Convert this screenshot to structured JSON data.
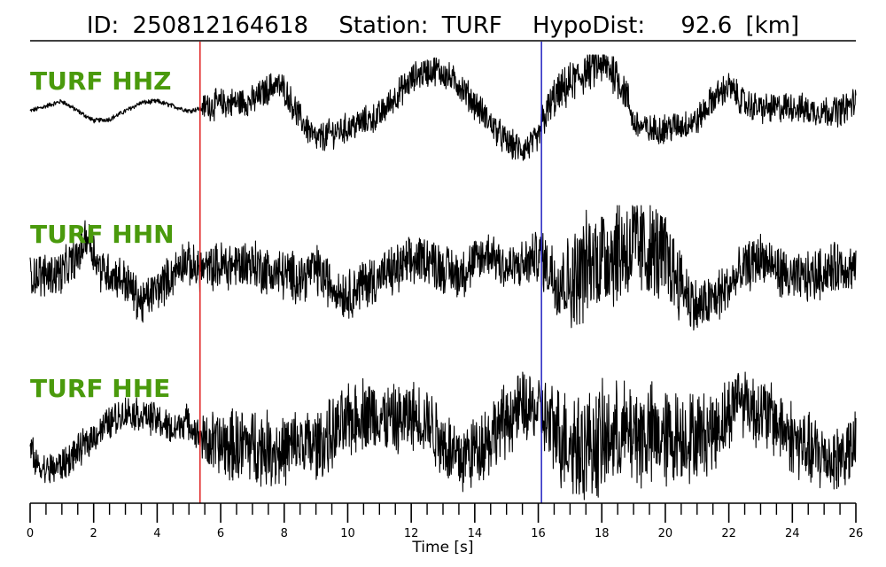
{
  "header": {
    "id_label": "ID:",
    "id_value": "250812164618",
    "station_label": "Station:",
    "station_value": "TURF",
    "dist_label": "HypoDist:",
    "dist_value": "92.6",
    "dist_unit": "[km]"
  },
  "colors": {
    "trace": "#000000",
    "channel_label": "#4a9a0c",
    "p_pick": "#e02020",
    "s_pick": "#2020c0"
  },
  "chart_data": {
    "type": "line",
    "xlabel": "Time [s]",
    "xlim": [
      0,
      26
    ],
    "x_major_ticks": [
      0,
      2,
      4,
      6,
      8,
      10,
      12,
      14,
      16,
      18,
      20,
      22,
      24,
      26
    ],
    "x_minor_step": 0.5,
    "grid": false,
    "picks": [
      {
        "phase": "P",
        "time": 5.35,
        "color": "#e02020"
      },
      {
        "phase": "S",
        "time": 16.1,
        "color": "#2020c0"
      }
    ],
    "series": [
      {
        "name": "TURF HHZ",
        "envelope": [
          [
            0,
            0.05,
            0.08
          ],
          [
            0.5,
            0.15,
            0.08
          ],
          [
            1,
            0.25,
            0.08
          ],
          [
            1.5,
            0.05,
            0.08
          ],
          [
            2,
            -0.15,
            0.08
          ],
          [
            2.5,
            -0.12,
            0.08
          ],
          [
            3,
            0.05,
            0.08
          ],
          [
            3.5,
            0.22,
            0.08
          ],
          [
            4,
            0.25,
            0.08
          ],
          [
            4.5,
            0.15,
            0.08
          ],
          [
            5,
            0.05,
            0.08
          ],
          [
            5.35,
            0.1,
            0.08
          ],
          [
            5.5,
            0.15,
            0.5
          ],
          [
            6,
            0.2,
            0.5
          ],
          [
            7,
            0.25,
            0.5
          ],
          [
            7.7,
            0.6,
            0.5
          ],
          [
            8,
            0.5,
            0.5
          ],
          [
            8.5,
            -0.1,
            0.5
          ],
          [
            9,
            -0.55,
            0.5
          ],
          [
            9.5,
            -0.4,
            0.5
          ],
          [
            10,
            -0.3,
            0.5
          ],
          [
            11,
            -0.05,
            0.5
          ],
          [
            11.5,
            0.35,
            0.5
          ],
          [
            12.2,
            0.8,
            0.5
          ],
          [
            12.8,
            0.9,
            0.5
          ],
          [
            13.5,
            0.6,
            0.5
          ],
          [
            14,
            0.2,
            0.5
          ],
          [
            14.5,
            -0.2,
            0.5
          ],
          [
            15,
            -0.6,
            0.5
          ],
          [
            15.5,
            -0.75,
            0.5
          ],
          [
            16,
            -0.55,
            0.5
          ],
          [
            16.1,
            -0.2,
            0.6
          ],
          [
            16.5,
            0.3,
            0.7
          ],
          [
            17,
            0.6,
            0.7
          ],
          [
            17.6,
            0.9,
            0.7
          ],
          [
            18,
            1.0,
            0.7
          ],
          [
            18.4,
            0.85,
            0.7
          ],
          [
            18.8,
            0.35,
            0.6
          ],
          [
            19,
            -0.2,
            0.5
          ],
          [
            19.5,
            -0.35,
            0.5
          ],
          [
            20,
            -0.3,
            0.5
          ],
          [
            20.5,
            -0.25,
            0.5
          ],
          [
            21,
            -0.15,
            0.5
          ],
          [
            21.5,
            0.3,
            0.5
          ],
          [
            22,
            0.55,
            0.5
          ],
          [
            22.5,
            0.2,
            0.5
          ],
          [
            23,
            0.1,
            0.5
          ],
          [
            23.5,
            0.1,
            0.5
          ],
          [
            24,
            0.15,
            0.5
          ],
          [
            24.5,
            0.05,
            0.5
          ],
          [
            25,
            0.05,
            0.5
          ],
          [
            25.5,
            0.05,
            0.5
          ],
          [
            26,
            0.25,
            0.5
          ]
        ]
      },
      {
        "name": "TURF HHN",
        "envelope": [
          [
            0,
            0.0,
            0.6
          ],
          [
            0.5,
            0.0,
            0.6
          ],
          [
            1,
            0.05,
            0.6
          ],
          [
            1.5,
            0.3,
            0.6
          ],
          [
            1.8,
            0.7,
            0.6
          ],
          [
            2.2,
            0.1,
            0.6
          ],
          [
            2.6,
            0.0,
            0.6
          ],
          [
            3,
            -0.1,
            0.6
          ],
          [
            3.5,
            -0.5,
            0.6
          ],
          [
            4,
            -0.25,
            0.6
          ],
          [
            4.5,
            0.0,
            0.6
          ],
          [
            4.8,
            0.25,
            0.6
          ],
          [
            5.2,
            0.1,
            0.6
          ],
          [
            5.6,
            0.1,
            0.6
          ],
          [
            6,
            0.15,
            0.7
          ],
          [
            7,
            0.2,
            0.7
          ],
          [
            7.5,
            0.05,
            0.7
          ],
          [
            8,
            0.0,
            0.7
          ],
          [
            8.5,
            -0.05,
            0.7
          ],
          [
            9,
            0.1,
            0.7
          ],
          [
            9.5,
            -0.2,
            0.7
          ],
          [
            10,
            -0.35,
            0.7
          ],
          [
            10.5,
            -0.15,
            0.7
          ],
          [
            11,
            -0.05,
            0.7
          ],
          [
            12,
            0.2,
            0.7
          ],
          [
            12.5,
            0.3,
            0.7
          ],
          [
            13,
            0.1,
            0.7
          ],
          [
            13.5,
            0.0,
            0.7
          ],
          [
            14,
            0.2,
            0.7
          ],
          [
            14.5,
            0.4,
            0.7
          ],
          [
            15,
            0.1,
            0.7
          ],
          [
            15.5,
            0.15,
            0.7
          ],
          [
            16,
            0.35,
            0.7
          ],
          [
            16.5,
            0.0,
            1.1
          ],
          [
            17,
            -0.15,
            1.3
          ],
          [
            17.5,
            0.15,
            1.5
          ],
          [
            18,
            0.35,
            1.5
          ],
          [
            18.5,
            0.45,
            1.6
          ],
          [
            19,
            0.45,
            1.6
          ],
          [
            19.5,
            0.4,
            1.5
          ],
          [
            20,
            0.3,
            1.3
          ],
          [
            20.5,
            -0.15,
            1.0
          ],
          [
            21,
            -0.6,
            0.8
          ],
          [
            21.5,
            -0.45,
            0.8
          ],
          [
            22,
            -0.2,
            0.7
          ],
          [
            22.5,
            0.1,
            0.7
          ],
          [
            23,
            0.3,
            0.7
          ],
          [
            23.5,
            0.1,
            0.7
          ],
          [
            24,
            -0.1,
            0.7
          ],
          [
            24.5,
            -0.05,
            0.7
          ],
          [
            25,
            0.05,
            0.7
          ],
          [
            25.5,
            0.15,
            0.7
          ],
          [
            26,
            0.1,
            0.7
          ]
        ]
      },
      {
        "name": "TURF HHE",
        "envelope": [
          [
            0,
            -0.2,
            0.5
          ],
          [
            0.2,
            -0.55,
            0.5
          ],
          [
            0.5,
            -0.65,
            0.5
          ],
          [
            1,
            -0.55,
            0.5
          ],
          [
            1.5,
            -0.3,
            0.5
          ],
          [
            2,
            0.0,
            0.5
          ],
          [
            2.5,
            0.25,
            0.5
          ],
          [
            3,
            0.45,
            0.5
          ],
          [
            3.5,
            0.4,
            0.5
          ],
          [
            4,
            0.3,
            0.5
          ],
          [
            4.5,
            0.1,
            0.5
          ],
          [
            4.9,
            0.3,
            0.5
          ],
          [
            5.3,
            0.0,
            0.5
          ],
          [
            5.6,
            -0.1,
            0.9
          ],
          [
            6,
            -0.2,
            1.1
          ],
          [
            7,
            -0.15,
            1.1
          ],
          [
            8,
            -0.3,
            1.1
          ],
          [
            8.5,
            -0.15,
            1.1
          ],
          [
            9,
            -0.2,
            1.1
          ],
          [
            9.5,
            0.0,
            1.1
          ],
          [
            10,
            0.25,
            1.1
          ],
          [
            10.5,
            0.45,
            1.1
          ],
          [
            11,
            0.35,
            1.1
          ],
          [
            11.5,
            0.25,
            1.1
          ],
          [
            12,
            0.35,
            1.1
          ],
          [
            12.5,
            0.3,
            1.1
          ],
          [
            13,
            -0.1,
            1.1
          ],
          [
            13.5,
            -0.45,
            1.1
          ],
          [
            14,
            -0.25,
            1.1
          ],
          [
            14.5,
            0.0,
            1.1
          ],
          [
            15,
            0.3,
            1.1
          ],
          [
            15.5,
            0.55,
            1.1
          ],
          [
            16,
            0.45,
            1.1
          ],
          [
            16.5,
            0.1,
            1.4
          ],
          [
            17,
            -0.1,
            1.7
          ],
          [
            17.5,
            -0.2,
            1.7
          ],
          [
            18,
            -0.1,
            1.7
          ],
          [
            18.5,
            0.0,
            1.6
          ],
          [
            19,
            0.05,
            1.6
          ],
          [
            19.5,
            0.0,
            1.6
          ],
          [
            20,
            -0.05,
            1.5
          ],
          [
            20.5,
            0.0,
            1.4
          ],
          [
            21,
            0.0,
            1.3
          ],
          [
            21.5,
            0.1,
            1.2
          ],
          [
            22,
            0.4,
            1.1
          ],
          [
            22.3,
            0.8,
            1.1
          ],
          [
            22.8,
            0.5,
            1.1
          ],
          [
            23.3,
            0.35,
            1.1
          ],
          [
            23.8,
            0.1,
            1.1
          ],
          [
            24.3,
            -0.2,
            1.1
          ],
          [
            24.8,
            -0.35,
            1.1
          ],
          [
            25.3,
            -0.45,
            1.1
          ],
          [
            25.8,
            -0.3,
            1.1
          ],
          [
            26,
            -0.25,
            1.1
          ]
        ]
      }
    ]
  }
}
